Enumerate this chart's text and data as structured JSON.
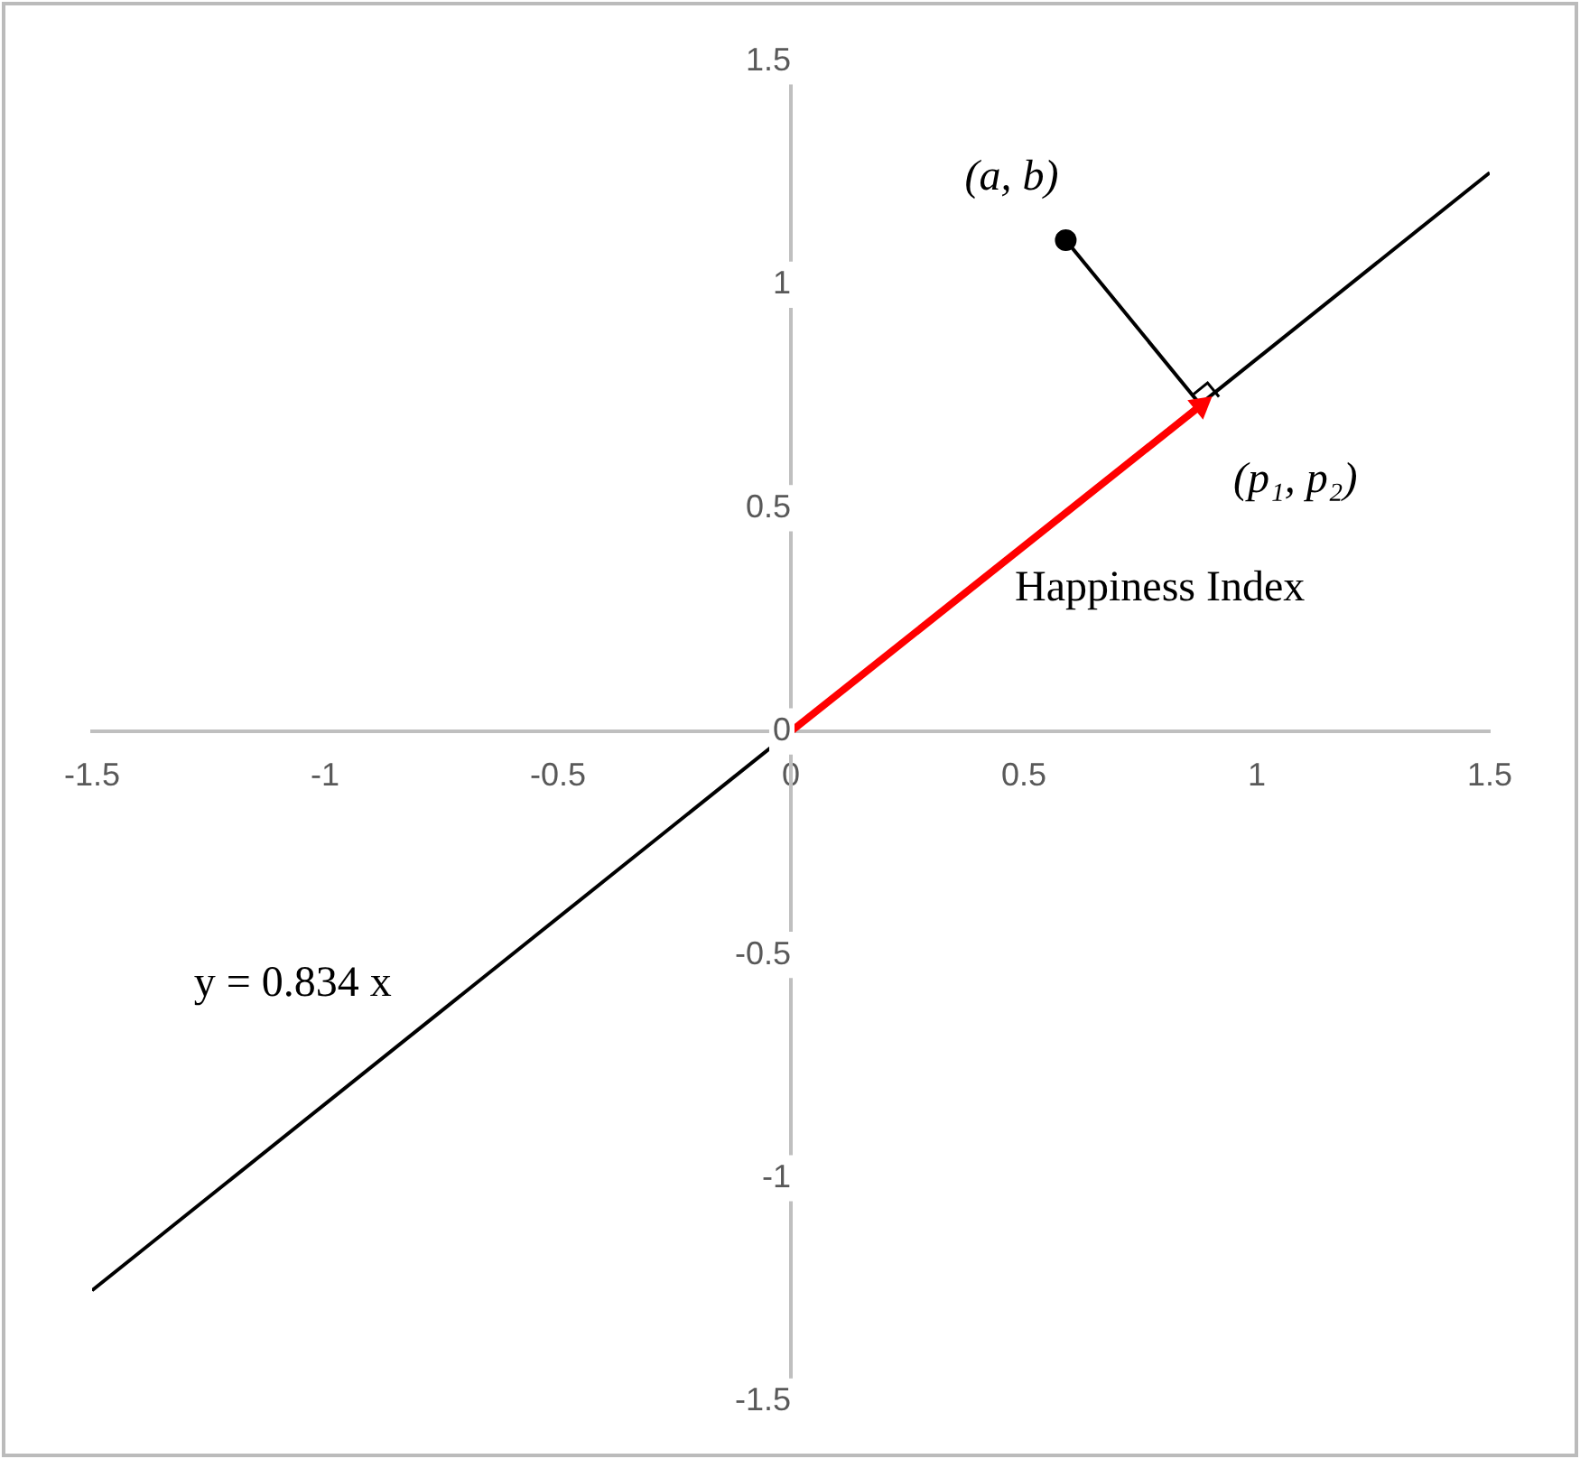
{
  "chart_data": {
    "type": "line",
    "xlim": [
      -1.5,
      1.5
    ],
    "ylim": [
      -1.5,
      1.5
    ],
    "xticks": [
      -1.5,
      -1,
      -0.5,
      0,
      0.5,
      1,
      1.5
    ],
    "yticks": [
      -1.5,
      -1,
      -0.5,
      0,
      0.5,
      1,
      1.5
    ],
    "grid": false,
    "legend": false,
    "series": [
      {
        "name": "y = 0.834 x",
        "color": "#000000",
        "x": [
          -1.5,
          1.5
        ],
        "values": [
          -1.251,
          1.251
        ],
        "marker": "none"
      },
      {
        "color": "#000000",
        "x": [
          0.59,
          0.88
        ],
        "values": [
          1.1,
          0.73
        ],
        "marker": "none"
      },
      {
        "name": "Happiness Index",
        "color": "#ff0000",
        "x": [
          0,
          0.88
        ],
        "values": [
          0,
          0.73
        ],
        "marker": "triangle"
      },
      {
        "type": "scatter",
        "color": "#000000",
        "x": [
          0.59
        ],
        "values": [
          1.1
        ],
        "marker": "circle"
      }
    ],
    "annotations": [
      {
        "text": "(a, b)",
        "x": 0.59,
        "y": 1.1
      },
      {
        "text": "(p₁, p₂)",
        "x": 0.88,
        "y": 0.73
      }
    ]
  }
}
